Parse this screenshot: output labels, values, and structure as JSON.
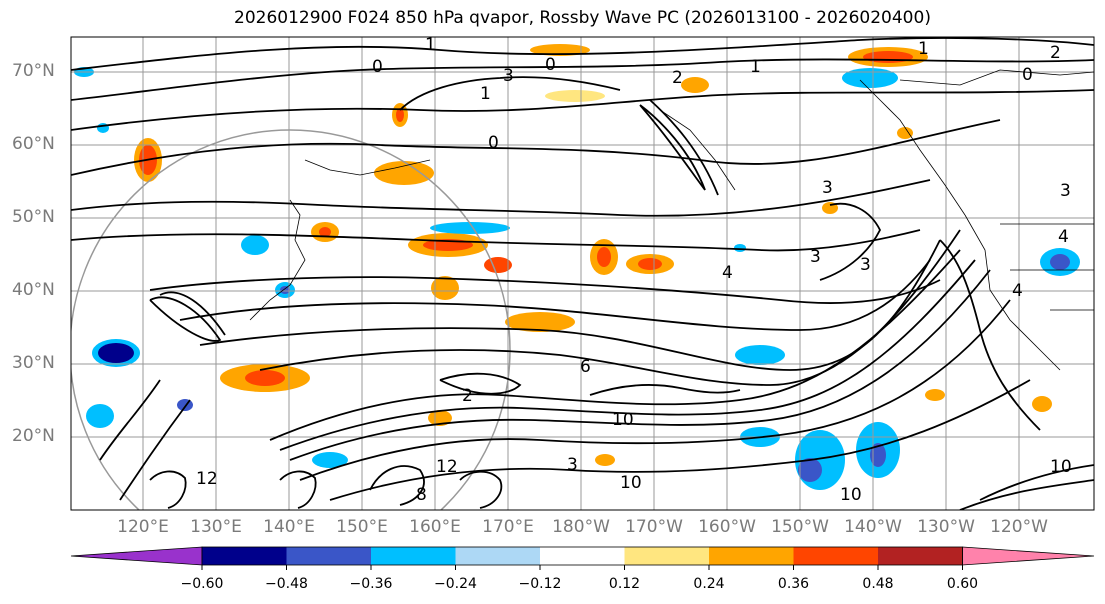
{
  "title": "2026012900 F024 850 hPa qvapor, Rossby Wave PC (2026013100 - 2026020400)",
  "latitude_labels": [
    "70°N",
    "60°N",
    "50°N",
    "40°N",
    "30°N",
    "20°N"
  ],
  "longitude_labels": [
    "120°E",
    "130°E",
    "140°E",
    "150°E",
    "160°E",
    "170°E",
    "180°W",
    "170°W",
    "160°W",
    "150°W",
    "140°W",
    "130°W",
    "120°W"
  ],
  "colorbar": {
    "colors": [
      "#9932cc",
      "#00008b",
      "#3a56c8",
      "#00bfff",
      "#add8f5",
      "#ffffff",
      "#ffe680",
      "#ffa500",
      "#ff4500",
      "#b22222",
      "#ff82ab"
    ],
    "tick_labels": [
      "−0.60",
      "−0.48",
      "−0.36",
      "−0.24",
      "−0.12",
      "0.12",
      "0.24",
      "0.36",
      "0.48",
      "0.60"
    ]
  },
  "contour_labels": [
    "1",
    "0",
    "1",
    "2",
    "0",
    "3",
    "2",
    "0",
    "0",
    "3",
    "3",
    "4",
    "4",
    "3",
    "3",
    "1",
    "1",
    "6",
    "10",
    "10",
    "12",
    "12",
    "2",
    "8",
    "10",
    "10",
    "3",
    "4"
  ],
  "map_colors": {
    "contour": "#000000",
    "coast": "#000000",
    "grid": "#999999"
  }
}
